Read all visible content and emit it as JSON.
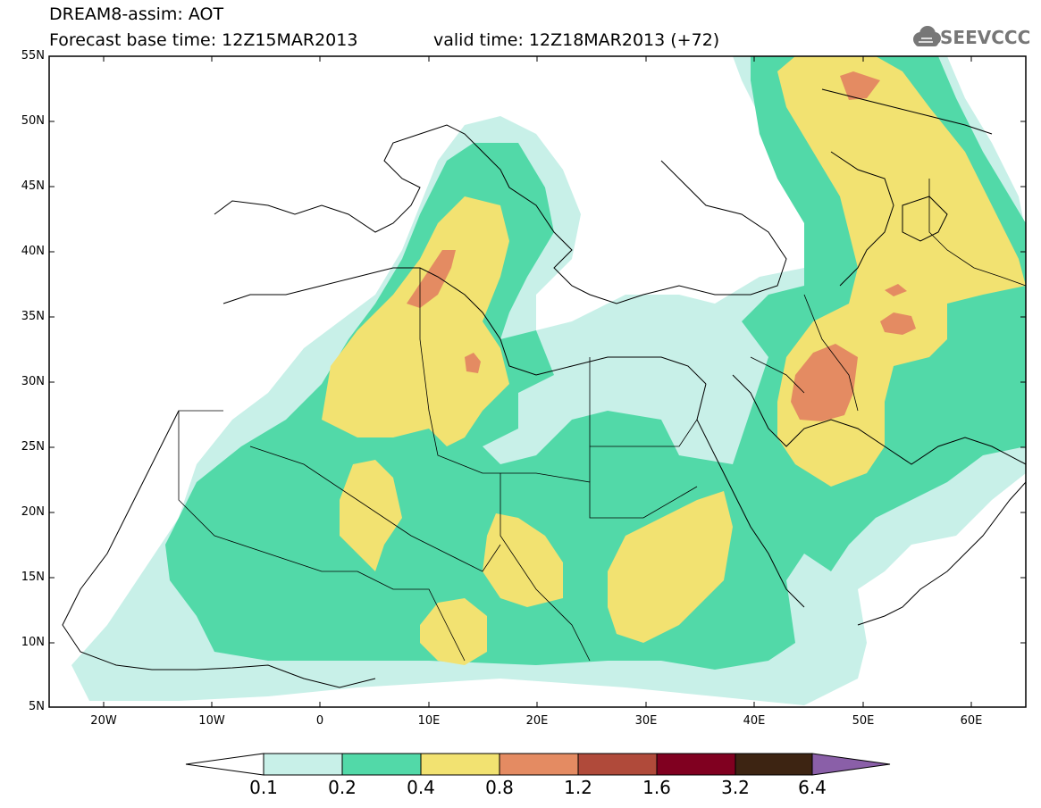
{
  "title": {
    "line1": "DREAM8-assim: AOT",
    "line2": "Forecast base time: 12Z15MAR2013",
    "valid": "valid time: 12Z18MAR2013 (+72)"
  },
  "logo": {
    "text": "SEEVCCC",
    "icon": "cloud-icon"
  },
  "axes": {
    "lat_labels": [
      "55N",
      "50N",
      "45N",
      "40N",
      "35N",
      "30N",
      "25N",
      "20N",
      "15N",
      "10N",
      "5N"
    ],
    "lon_labels": [
      "20W",
      "10W",
      "0",
      "10E",
      "20E",
      "30E",
      "40E",
      "50E",
      "60E"
    ],
    "lat_range": [
      5,
      55
    ],
    "lon_range": [
      -25,
      65
    ]
  },
  "colorbar": {
    "labels": [
      "0.1",
      "0.2",
      "0.4",
      "0.8",
      "1.2",
      "1.6",
      "3.2",
      "6.4"
    ],
    "colors": [
      "#c8f0e8",
      "#52d9a8",
      "#f2e271",
      "#e48b62",
      "#b04a3a",
      "#800020",
      "#3d2412",
      "#8a5fa8"
    ]
  },
  "colors": {
    "level1": "#c8f0e8",
    "level2": "#52d9a8",
    "level3": "#f2e271",
    "level4": "#e48b62"
  }
}
